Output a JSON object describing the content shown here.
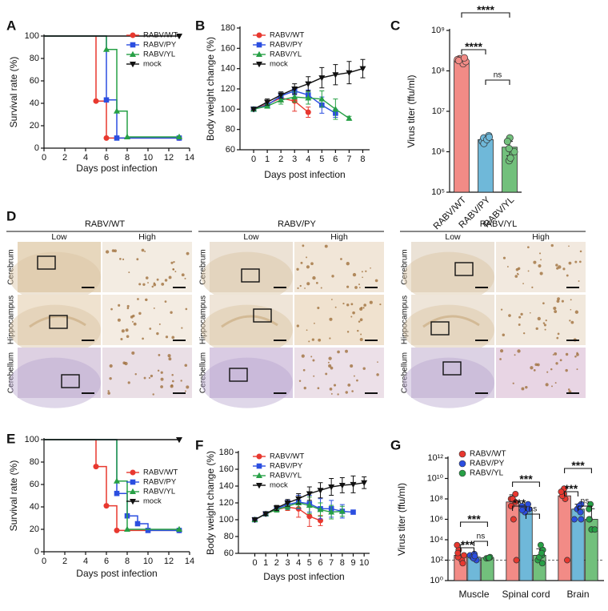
{
  "chart_data": [
    {
      "panel": "A",
      "type": "survival",
      "y_label": "Survival rate (%)",
      "x_label": "Days post infection",
      "xlim": [
        0,
        14
      ],
      "xticks": [
        0,
        2,
        4,
        6,
        8,
        10,
        12,
        14
      ],
      "ylim": [
        0,
        100
      ],
      "yticks": [
        0,
        20,
        40,
        60,
        80,
        100
      ],
      "series": [
        {
          "name": "RABV/WT",
          "color": "#e8382f",
          "marker": "circle",
          "x": [
            0,
            5,
            6,
            13
          ],
          "values": [
            100,
            42,
            9,
            9
          ]
        },
        {
          "name": "RABV/PY",
          "color": "#2b4ee0",
          "marker": "square",
          "x": [
            0,
            6,
            7,
            13
          ],
          "values": [
            100,
            43,
            9,
            9
          ]
        },
        {
          "name": "RABV/YL",
          "color": "#27a046",
          "marker": "triangle",
          "x": [
            0,
            6,
            7,
            8,
            13
          ],
          "values": [
            100,
            88,
            33,
            10,
            10
          ]
        },
        {
          "name": "mock",
          "color": "#111111",
          "marker": "triangle-down",
          "x": [
            0,
            13
          ],
          "values": [
            100,
            100
          ]
        }
      ]
    },
    {
      "panel": "B",
      "type": "line",
      "y_label": "Body weight change (%)",
      "x_label": "Days post infection",
      "x": [
        0,
        1,
        2,
        3,
        4,
        5,
        6,
        7,
        8
      ],
      "xlim": [
        -1,
        8.5
      ],
      "xticks": [
        0,
        1,
        2,
        3,
        4,
        5,
        6,
        7,
        8
      ],
      "ylim": [
        60,
        180
      ],
      "yticks": [
        60,
        80,
        100,
        120,
        140,
        160,
        180
      ],
      "series": [
        {
          "name": "RABV/WT",
          "color": "#e8382f",
          "marker": "circle",
          "values": [
            100,
            105,
            111,
            108,
            97,
            null,
            null,
            null,
            null
          ],
          "errors": [
            1,
            3,
            4,
            10,
            5,
            null,
            null,
            null,
            null
          ]
        },
        {
          "name": "RABV/PY",
          "color": "#2b4ee0",
          "marker": "square",
          "values": [
            100,
            104,
            113,
            118,
            114,
            104,
            96,
            null,
            null
          ],
          "errors": [
            1,
            2,
            3,
            4,
            5,
            8,
            4,
            null,
            null
          ]
        },
        {
          "name": "RABV/YL",
          "color": "#27a046",
          "marker": "triangle",
          "values": [
            100,
            103,
            109,
            112,
            111,
            110,
            100,
            91,
            null
          ],
          "errors": [
            1,
            2,
            4,
            5,
            6,
            8,
            10,
            2,
            null
          ]
        },
        {
          "name": "mock",
          "color": "#111111",
          "marker": "triangle-down",
          "values": [
            100,
            107,
            114,
            120,
            125,
            131,
            134,
            136,
            140
          ],
          "errors": [
            1,
            3,
            3,
            5,
            7,
            10,
            10,
            11,
            9
          ]
        }
      ]
    },
    {
      "panel": "C",
      "type": "bar",
      "log_y": true,
      "y_label": "Virus titer (ffu/ml)",
      "categories": [
        "RABV/WT",
        "RABV/PY",
        "RABV/YL"
      ],
      "values": [
        180000000,
        2000000,
        1300000
      ],
      "errors": [
        20000000,
        300000,
        500000
      ],
      "colors": [
        "#f28b86",
        "#6fb8d9",
        "#72c07c"
      ],
      "points": [
        [
          150000000,
          170000000,
          200000000,
          190000000,
          180000000,
          210000000
        ],
        [
          1800000,
          2200000,
          2500000,
          1600000,
          2000000,
          2300000
        ],
        [
          1000000,
          2200000,
          1800000,
          600000,
          1200000,
          700000
        ]
      ],
      "ylim": [
        100000,
        1000000000
      ],
      "yticks": [
        {
          "value": 100000,
          "label": "10⁵"
        },
        {
          "value": 1000000,
          "label": "10⁶"
        },
        {
          "value": 10000000,
          "label": "10⁷"
        },
        {
          "value": 100000000,
          "label": "10⁸"
        },
        {
          "value": 1000000000,
          "label": "10⁹"
        }
      ],
      "annotations": [
        "****",
        "****",
        "ns"
      ]
    },
    {
      "panel": "E",
      "type": "survival",
      "y_label": "Survival rate (%)",
      "x_label": "Days post infection",
      "xlim": [
        0,
        14
      ],
      "xticks": [
        0,
        2,
        4,
        6,
        8,
        10,
        12,
        14
      ],
      "ylim": [
        0,
        100
      ],
      "yticks": [
        0,
        20,
        40,
        60,
        80,
        100
      ],
      "series": [
        {
          "name": "RABV/WT",
          "color": "#e8382f",
          "marker": "circle",
          "x": [
            0,
            5,
            6,
            7,
            13
          ],
          "values": [
            100,
            76,
            41,
            19,
            19
          ]
        },
        {
          "name": "RABV/PY",
          "color": "#2b4ee0",
          "marker": "square",
          "x": [
            0,
            7,
            8,
            9,
            10,
            13
          ],
          "values": [
            100,
            52,
            32,
            25,
            19,
            19
          ]
        },
        {
          "name": "RABV/YL",
          "color": "#27a046",
          "marker": "triangle",
          "x": [
            0,
            7,
            8,
            13
          ],
          "values": [
            100,
            63,
            20,
            20
          ]
        },
        {
          "name": "mock",
          "color": "#111111",
          "marker": "triangle-down",
          "x": [
            0,
            13
          ],
          "values": [
            100,
            100
          ]
        }
      ]
    },
    {
      "panel": "F",
      "type": "line",
      "y_label": "Body weight change (%)",
      "x_label": "Days post infection",
      "x": [
        0,
        1,
        2,
        3,
        4,
        5,
        6,
        7,
        8,
        9,
        10
      ],
      "xlim": [
        -1.5,
        10.5
      ],
      "xticks": [
        0,
        1,
        2,
        3,
        4,
        5,
        6,
        7,
        8,
        9,
        10
      ],
      "ylim": [
        60,
        180
      ],
      "yticks": [
        60,
        80,
        100,
        120,
        140,
        160,
        180
      ],
      "series": [
        {
          "name": "RABV/WT",
          "color": "#e8382f",
          "marker": "circle",
          "values": [
            100,
            107,
            112,
            115,
            113,
            104,
            99,
            null,
            null,
            null,
            null
          ],
          "errors": [
            1,
            2,
            3,
            4,
            10,
            12,
            6,
            null,
            null,
            null,
            null
          ]
        },
        {
          "name": "RABV/PY",
          "color": "#2b4ee0",
          "marker": "square",
          "values": [
            100,
            107,
            113,
            118,
            121,
            119,
            113,
            113,
            110,
            109,
            null
          ],
          "errors": [
            1,
            2,
            3,
            5,
            8,
            10,
            12,
            10,
            8,
            2,
            null
          ]
        },
        {
          "name": "RABV/YL",
          "color": "#27a046",
          "marker": "triangle",
          "values": [
            100,
            107,
            112,
            116,
            120,
            117,
            112,
            109,
            110,
            null,
            null
          ],
          "errors": [
            1,
            2,
            3,
            4,
            6,
            10,
            8,
            8,
            6,
            null,
            null
          ]
        },
        {
          "name": "mock",
          "color": "#111111",
          "marker": "triangle-down",
          "values": [
            100,
            107,
            114,
            120,
            125,
            131,
            135,
            139,
            141,
            142,
            144
          ],
          "errors": [
            1,
            2,
            3,
            4,
            6,
            8,
            9,
            10,
            9,
            10,
            7
          ]
        }
      ]
    },
    {
      "panel": "G",
      "type": "bar",
      "log_y": true,
      "y_label": "Virus titer (ffu/ml)",
      "categories": [
        "Muscle",
        "Spinal cord",
        "Brain"
      ],
      "series": [
        {
          "name": "RABV/WT",
          "color": "#e8382f",
          "bar_color": "#f28b86",
          "values": [
            300,
            50000000,
            200000000
          ],
          "errors": [
            3000,
            200000000,
            1000000000
          ],
          "points": [
            [
              100,
              300,
              1000,
              3000,
              200,
              50,
              500
            ],
            [
              100000000,
              50000000,
              20000000,
              1000000,
              300000000,
              100,
              100000000
            ],
            [
              500000000,
              1000000000,
              300000000,
              100000000,
              200000000,
              100,
              500000000
            ]
          ]
        },
        {
          "name": "RABV/PY",
          "color": "#2b4ee0",
          "bar_color": "#6fb8d9",
          "values": [
            200,
            10000000,
            10000000
          ],
          "errors": [
            300,
            20000000,
            20000000
          ],
          "points": [
            [
              100,
              300,
              200,
              150,
              400,
              250
            ],
            [
              10000000,
              30000000,
              5000000,
              10000000,
              20000000,
              8000000
            ],
            [
              10000000,
              30000000,
              1000000,
              5000000,
              20000000,
              1000000
            ]
          ]
        },
        {
          "name": "RABV/YL",
          "color": "#27a046",
          "bar_color": "#72c07c",
          "values": [
            170,
            300,
            1000000
          ],
          "errors": [
            20,
            1000,
            10000000
          ],
          "points": [
            [
              150,
              180,
              200,
              160,
              170
            ],
            [
              100,
              1000,
              300,
              50,
              3000,
              200,
              500
            ],
            [
              1000000,
              10000000,
              100000,
              1000000,
              30000000,
              100000,
              100000
            ]
          ]
        }
      ],
      "ylim": [
        1,
        1000000000000
      ],
      "yticks": [
        {
          "value": 1,
          "label": "10⁰"
        },
        {
          "value": 100,
          "label": "10²"
        },
        {
          "value": 10000,
          "label": "10⁴"
        },
        {
          "value": 1000000,
          "label": "10⁶"
        },
        {
          "value": 100000000,
          "label": "10⁸"
        },
        {
          "value": 10000000000,
          "label": "10¹⁰"
        },
        {
          "value": 1000000000000,
          "label": "10¹²"
        }
      ],
      "threshold": 100,
      "annotations": [
        [
          "***",
          "***",
          "ns"
        ],
        [
          "***",
          "***",
          "ns"
        ],
        [
          "***",
          "***",
          "ns"
        ]
      ]
    }
  ],
  "histology": {
    "panel": "D",
    "groups": [
      "RABV/WT",
      "RABV/PY",
      "RABV/YL"
    ],
    "columns": [
      "Low",
      "High"
    ],
    "rows": [
      "Cerebrum",
      "Hippocampus",
      "Cerebellum"
    ]
  }
}
